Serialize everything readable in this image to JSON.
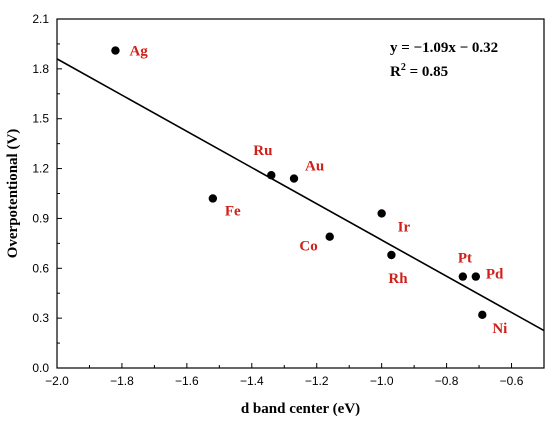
{
  "chart_data": {
    "type": "scatter",
    "title": "",
    "xlabel": "d band center (eV)",
    "ylabel": "Overpotentional (V)",
    "xlim": [
      -2.0,
      -0.5
    ],
    "ylim": [
      0.0,
      2.1
    ],
    "xticks": [
      -2.0,
      -1.8,
      -1.6,
      -1.4,
      -1.2,
      -1.0,
      -0.8,
      -0.6
    ],
    "xtick_labels": [
      "−2.0",
      "−1.8",
      "−1.6",
      "−1.4",
      "−1.2",
      "−1.0",
      "−0.8",
      "−0.6"
    ],
    "yticks": [
      0.0,
      0.3,
      0.6,
      0.9,
      1.2,
      1.5,
      1.8,
      2.1
    ],
    "ytick_labels": [
      "0.0",
      "0.3",
      "0.6",
      "0.9",
      "1.2",
      "1.5",
      "1.8",
      "2.1"
    ],
    "grid": false,
    "points": [
      {
        "label": "Ag",
        "x": -1.82,
        "y": 1.91
      },
      {
        "label": "Fe",
        "x": -1.52,
        "y": 1.02
      },
      {
        "label": "Ru",
        "x": -1.34,
        "y": 1.16
      },
      {
        "label": "Au",
        "x": -1.27,
        "y": 1.14
      },
      {
        "label": "Co",
        "x": -1.16,
        "y": 0.79
      },
      {
        "label": "Ir",
        "x": -1.0,
        "y": 0.93
      },
      {
        "label": "Rh",
        "x": -0.97,
        "y": 0.68
      },
      {
        "label": "Pt",
        "x": -0.75,
        "y": 0.55
      },
      {
        "label": "Pd",
        "x": -0.71,
        "y": 0.55
      },
      {
        "label": "Ni",
        "x": -0.69,
        "y": 0.32
      }
    ],
    "fit": {
      "slope": -1.09,
      "intercept": -0.32
    },
    "annotations": {
      "equation": "y = −1.09x − 0.32",
      "r2_prefix": "R",
      "r2_sup": "2",
      "r2_value": " = 0.85"
    },
    "colors": {
      "points": "#000000",
      "labels": "#d0201a",
      "line": "#000000"
    }
  }
}
